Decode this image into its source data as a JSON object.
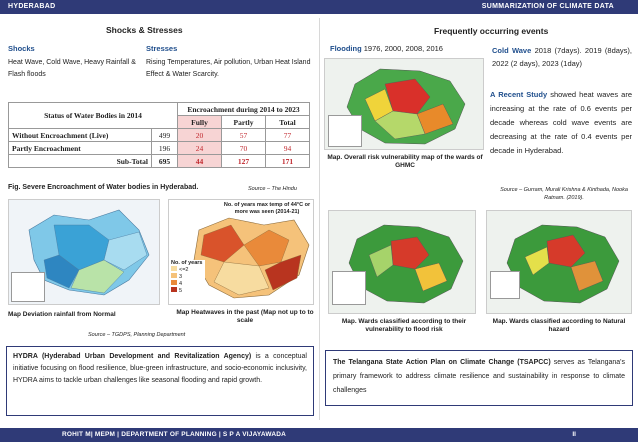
{
  "header": {
    "left": "HYDERABAD",
    "right": "SUMMARIZATION OF CLIMATE DATA"
  },
  "footer": {
    "left": "ROHIT M| MEPM | DEPARTMENT OF PLANNING | S P A VIJAYAWADA",
    "page": "II"
  },
  "shocks_stresses": {
    "title": "Shocks & Stresses",
    "shocks_heading": "Shocks",
    "shocks_text": "Heat Wave, Cold Wave, Heavy Rainfall & Flash floods",
    "stresses_heading": "Stresses",
    "stresses_text": "Rising Temperatures, Air pollution, Urban Heat Island Effect & Water Scarcity."
  },
  "water_table": {
    "col1": "Status of Water Bodies in 2014",
    "col2": "Encroachment during 2014 to 2023",
    "sub_headers": [
      "Fully",
      "Partly",
      "Total"
    ],
    "rows": [
      {
        "label": "Without Encroachment (Live)",
        "count": "499",
        "fully": "20",
        "partly": "57",
        "total": "77"
      },
      {
        "label": "Partly Encroachment",
        "count": "196",
        "fully": "24",
        "partly": "70",
        "total": "94"
      },
      {
        "label": "Sub-Total",
        "count": "695",
        "fully": "44",
        "partly": "127",
        "total": "171"
      }
    ],
    "caption": "Fig. Severe Encroachment of Water bodies in Hyderabad.",
    "source": "Source – The Hindu"
  },
  "maps_left": {
    "rainfall_caption": "Map Deviation rainfall from Normal",
    "heat_caption": "Map Heatwaves in the past (Map not up to to scale",
    "heat_title": "No. of years max temp of 44°C or more was seen (2014-21)",
    "heat_legend_title": "No. of years",
    "heat_legend": [
      "<=2",
      "3",
      "4",
      "5"
    ],
    "source": "Source – TGDPS, Planning Department"
  },
  "hydra": {
    "title": "HYDRA (Hyderabad Urban Development and Revitalization Agency)",
    "text": " is a conceptual initiative focusing on flood resilience, blue-green infrastructure, and socio-economic inclusivity, HYDRA aims to tackle urban challenges like seasonal flooding and rapid growth."
  },
  "frequent": {
    "title": "Frequently occurring events",
    "flooding_label": "Flooding",
    "flooding_years": " 1976, 2000, 2008, 2016",
    "cold_label": "Cold Wave",
    "cold_text": " 2018 (7days). 2019 (8days), 2022 (2 days), 2023 (1day)",
    "study_label": "A Recent Study",
    "study_text": " showed heat waves are increasing at the rate of 0.6 events per decade whereas cold wave events are decreasing at the rate of 0.4 events per decade in Hyderabad.",
    "study_source": "Source – Gurram, Murali Krishna & Kinthada, Nooka Ratnam. (2019).",
    "risk_caption": "Map. Overall risk vulnerability map of the wards of GHMC",
    "flood_caption": "Map. Wards classified according to their vulnerability to flood risk",
    "natural_caption": "Map. Wards classified according to Natural hazard"
  },
  "tsapcc": {
    "title": "The Telangana State Action Plan on Climate Change (TSAPCC)",
    "text": " serves as Telangana's primary framework to address climate resilience and sustainability in response to climate challenges"
  },
  "colors": {
    "navy": "#2f3a77",
    "accent_blue": "#1f4e8c",
    "table_red": "#c0272d"
  }
}
